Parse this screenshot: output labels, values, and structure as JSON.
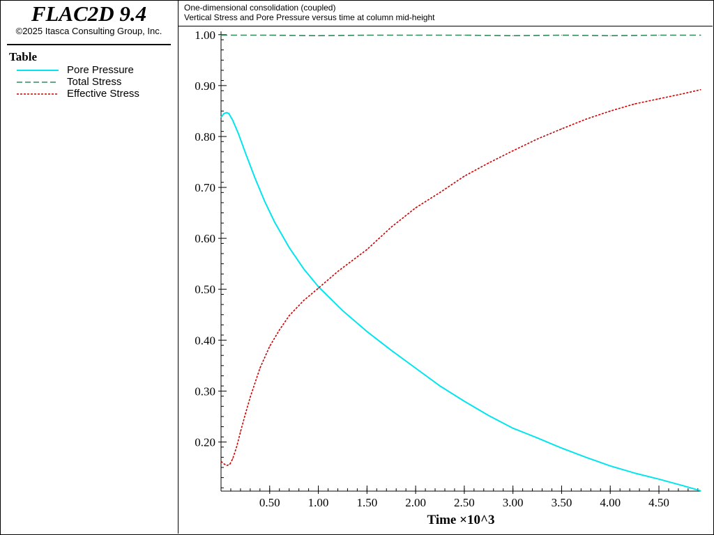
{
  "app": {
    "title": "FLAC2D 9.4",
    "copyright": "©2025 Itasca Consulting Group, Inc."
  },
  "legend": {
    "heading": "Table",
    "items": [
      {
        "label": "Pore Pressure",
        "color": "#00e5ee",
        "style": "solid"
      },
      {
        "label": "Total Stress",
        "color": "#2e8b57",
        "style": "dashed"
      },
      {
        "label": "Effective Stress",
        "color": "#cc0000",
        "style": "dotted"
      }
    ]
  },
  "header": {
    "line1": "One-dimensional consolidation (coupled)",
    "line2": "Vertical Stress and Pore Pressure versus time at column mid-height"
  },
  "chart_data": {
    "type": "line",
    "xlabel": "Time ×10^3",
    "ylabel": "",
    "xlim": [
      0.0,
      4.93
    ],
    "ylim": [
      0.1035,
      1.0065
    ],
    "xticks": [
      0.5,
      1.0,
      1.5,
      2.0,
      2.5,
      3.0,
      3.5,
      4.0,
      4.5
    ],
    "xtick_labels": [
      "0.50",
      "1.00",
      "1.50",
      "2.00",
      "2.50",
      "3.00",
      "3.50",
      "4.00",
      "4.50"
    ],
    "yticks": [
      0.2,
      0.3,
      0.4,
      0.5,
      0.6,
      0.7,
      0.8,
      0.9,
      1.0
    ],
    "ytick_labels": [
      "0.20",
      "0.30",
      "0.40",
      "0.50",
      "0.60",
      "0.70",
      "0.80",
      "0.90",
      "1.00"
    ],
    "series": [
      {
        "name": "Pore Pressure",
        "color": "#00e5ee",
        "style": "solid",
        "x": [
          0,
          0.03,
          0.06,
          0.08,
          0.12,
          0.18,
          0.25,
          0.35,
          0.45,
          0.55,
          0.7,
          0.85,
          1.0,
          1.25,
          1.5,
          1.75,
          2.0,
          2.25,
          2.5,
          2.75,
          3.0,
          3.25,
          3.5,
          3.75,
          4.0,
          4.25,
          4.5,
          4.75,
          4.93
        ],
        "y": [
          0.838,
          0.845,
          0.847,
          0.845,
          0.832,
          0.805,
          0.768,
          0.718,
          0.672,
          0.632,
          0.582,
          0.54,
          0.505,
          0.458,
          0.417,
          0.38,
          0.345,
          0.31,
          0.28,
          0.252,
          0.227,
          0.208,
          0.188,
          0.17,
          0.153,
          0.139,
          0.127,
          0.114,
          0.104
        ]
      },
      {
        "name": "Total Stress",
        "color": "#2e8b57",
        "style": "dashed",
        "x": [
          0,
          0.5,
          1.0,
          1.5,
          2.0,
          2.5,
          3.0,
          3.5,
          4.0,
          4.5,
          4.93
        ],
        "y": [
          0.999,
          0.999,
          0.998,
          0.999,
          0.999,
          0.999,
          0.998,
          0.999,
          0.998,
          0.999,
          0.999
        ]
      },
      {
        "name": "Effective Stress",
        "color": "#cc0000",
        "style": "dotted",
        "x": [
          0,
          0.03,
          0.06,
          0.09,
          0.12,
          0.16,
          0.2,
          0.25,
          0.3,
          0.4,
          0.5,
          0.6,
          0.7,
          0.85,
          1.0,
          1.2,
          1.5,
          1.75,
          2.0,
          2.25,
          2.5,
          2.75,
          3.0,
          3.25,
          3.5,
          3.75,
          4.0,
          4.25,
          4.5,
          4.75,
          4.93
        ],
        "y": [
          0.162,
          0.157,
          0.154,
          0.156,
          0.167,
          0.19,
          0.22,
          0.255,
          0.288,
          0.345,
          0.388,
          0.42,
          0.448,
          0.478,
          0.502,
          0.535,
          0.578,
          0.622,
          0.66,
          0.69,
          0.722,
          0.748,
          0.772,
          0.795,
          0.815,
          0.834,
          0.85,
          0.864,
          0.874,
          0.884,
          0.892
        ]
      }
    ]
  }
}
